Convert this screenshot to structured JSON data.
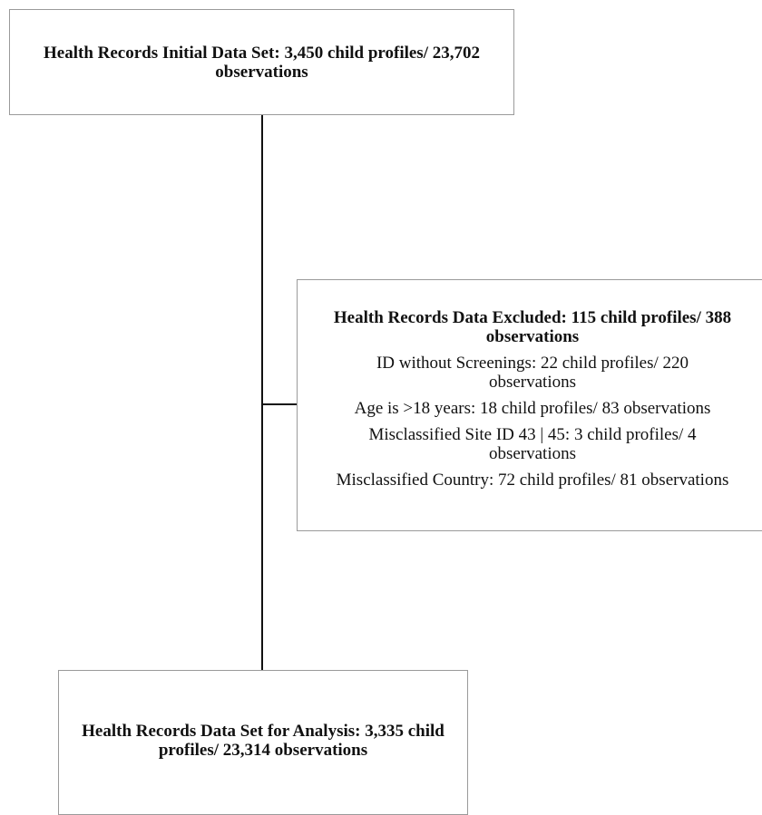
{
  "initial": {
    "title": "Health Records Initial Data Set: 3,450 child profiles/ 23,702 observations"
  },
  "excluded": {
    "title": "Health Records Data Excluded: 115 child profiles/ 388 observations",
    "reasons": [
      "ID without Screenings: 22 child profiles/ 220 observations",
      "Age is >18 years: 18 child profiles/ 83 observations",
      "Misclassified Site ID 43 | 45: 3 child profiles/ 4 observations",
      "Misclassified Country: 72 child profiles/ 81 observations"
    ]
  },
  "analysis": {
    "title": "Health Records Data Set for Analysis: 3,335 child profiles/ 23,314 observations"
  },
  "colors": {
    "box_border": "#9a9a9a",
    "connector": "#111111",
    "text": "#111111"
  }
}
